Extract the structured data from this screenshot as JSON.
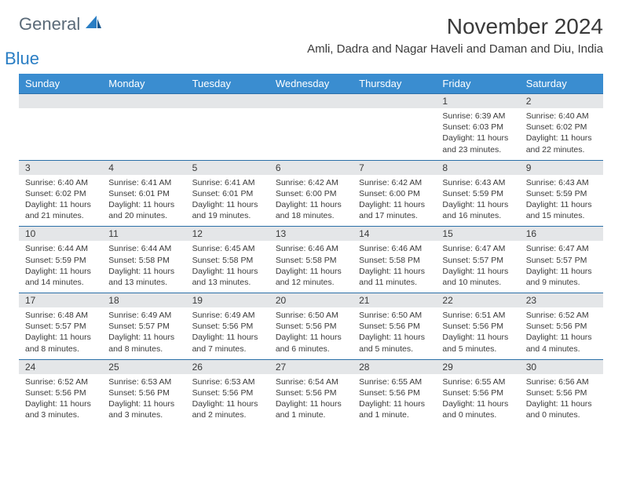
{
  "logo": {
    "general": "General",
    "blue": "Blue"
  },
  "title": "November 2024",
  "location": "Amli, Dadra and Nagar Haveli and Daman and Diu, India",
  "colors": {
    "header_bg": "#3a8dd0",
    "daynum_bg": "#e4e6e8",
    "row_border": "#2a6fa8",
    "text": "#3a3a3a",
    "logo_gray": "#5a6a78",
    "logo_blue": "#2a7ec4"
  },
  "weekdays": [
    "Sunday",
    "Monday",
    "Tuesday",
    "Wednesday",
    "Thursday",
    "Friday",
    "Saturday"
  ],
  "weeks": [
    [
      null,
      null,
      null,
      null,
      null,
      {
        "n": "1",
        "sr": "Sunrise: 6:39 AM",
        "ss": "Sunset: 6:03 PM",
        "dl": "Daylight: 11 hours and 23 minutes."
      },
      {
        "n": "2",
        "sr": "Sunrise: 6:40 AM",
        "ss": "Sunset: 6:02 PM",
        "dl": "Daylight: 11 hours and 22 minutes."
      }
    ],
    [
      {
        "n": "3",
        "sr": "Sunrise: 6:40 AM",
        "ss": "Sunset: 6:02 PM",
        "dl": "Daylight: 11 hours and 21 minutes."
      },
      {
        "n": "4",
        "sr": "Sunrise: 6:41 AM",
        "ss": "Sunset: 6:01 PM",
        "dl": "Daylight: 11 hours and 20 minutes."
      },
      {
        "n": "5",
        "sr": "Sunrise: 6:41 AM",
        "ss": "Sunset: 6:01 PM",
        "dl": "Daylight: 11 hours and 19 minutes."
      },
      {
        "n": "6",
        "sr": "Sunrise: 6:42 AM",
        "ss": "Sunset: 6:00 PM",
        "dl": "Daylight: 11 hours and 18 minutes."
      },
      {
        "n": "7",
        "sr": "Sunrise: 6:42 AM",
        "ss": "Sunset: 6:00 PM",
        "dl": "Daylight: 11 hours and 17 minutes."
      },
      {
        "n": "8",
        "sr": "Sunrise: 6:43 AM",
        "ss": "Sunset: 5:59 PM",
        "dl": "Daylight: 11 hours and 16 minutes."
      },
      {
        "n": "9",
        "sr": "Sunrise: 6:43 AM",
        "ss": "Sunset: 5:59 PM",
        "dl": "Daylight: 11 hours and 15 minutes."
      }
    ],
    [
      {
        "n": "10",
        "sr": "Sunrise: 6:44 AM",
        "ss": "Sunset: 5:59 PM",
        "dl": "Daylight: 11 hours and 14 minutes."
      },
      {
        "n": "11",
        "sr": "Sunrise: 6:44 AM",
        "ss": "Sunset: 5:58 PM",
        "dl": "Daylight: 11 hours and 13 minutes."
      },
      {
        "n": "12",
        "sr": "Sunrise: 6:45 AM",
        "ss": "Sunset: 5:58 PM",
        "dl": "Daylight: 11 hours and 13 minutes."
      },
      {
        "n": "13",
        "sr": "Sunrise: 6:46 AM",
        "ss": "Sunset: 5:58 PM",
        "dl": "Daylight: 11 hours and 12 minutes."
      },
      {
        "n": "14",
        "sr": "Sunrise: 6:46 AM",
        "ss": "Sunset: 5:58 PM",
        "dl": "Daylight: 11 hours and 11 minutes."
      },
      {
        "n": "15",
        "sr": "Sunrise: 6:47 AM",
        "ss": "Sunset: 5:57 PM",
        "dl": "Daylight: 11 hours and 10 minutes."
      },
      {
        "n": "16",
        "sr": "Sunrise: 6:47 AM",
        "ss": "Sunset: 5:57 PM",
        "dl": "Daylight: 11 hours and 9 minutes."
      }
    ],
    [
      {
        "n": "17",
        "sr": "Sunrise: 6:48 AM",
        "ss": "Sunset: 5:57 PM",
        "dl": "Daylight: 11 hours and 8 minutes."
      },
      {
        "n": "18",
        "sr": "Sunrise: 6:49 AM",
        "ss": "Sunset: 5:57 PM",
        "dl": "Daylight: 11 hours and 8 minutes."
      },
      {
        "n": "19",
        "sr": "Sunrise: 6:49 AM",
        "ss": "Sunset: 5:56 PM",
        "dl": "Daylight: 11 hours and 7 minutes."
      },
      {
        "n": "20",
        "sr": "Sunrise: 6:50 AM",
        "ss": "Sunset: 5:56 PM",
        "dl": "Daylight: 11 hours and 6 minutes."
      },
      {
        "n": "21",
        "sr": "Sunrise: 6:50 AM",
        "ss": "Sunset: 5:56 PM",
        "dl": "Daylight: 11 hours and 5 minutes."
      },
      {
        "n": "22",
        "sr": "Sunrise: 6:51 AM",
        "ss": "Sunset: 5:56 PM",
        "dl": "Daylight: 11 hours and 5 minutes."
      },
      {
        "n": "23",
        "sr": "Sunrise: 6:52 AM",
        "ss": "Sunset: 5:56 PM",
        "dl": "Daylight: 11 hours and 4 minutes."
      }
    ],
    [
      {
        "n": "24",
        "sr": "Sunrise: 6:52 AM",
        "ss": "Sunset: 5:56 PM",
        "dl": "Daylight: 11 hours and 3 minutes."
      },
      {
        "n": "25",
        "sr": "Sunrise: 6:53 AM",
        "ss": "Sunset: 5:56 PM",
        "dl": "Daylight: 11 hours and 3 minutes."
      },
      {
        "n": "26",
        "sr": "Sunrise: 6:53 AM",
        "ss": "Sunset: 5:56 PM",
        "dl": "Daylight: 11 hours and 2 minutes."
      },
      {
        "n": "27",
        "sr": "Sunrise: 6:54 AM",
        "ss": "Sunset: 5:56 PM",
        "dl": "Daylight: 11 hours and 1 minute."
      },
      {
        "n": "28",
        "sr": "Sunrise: 6:55 AM",
        "ss": "Sunset: 5:56 PM",
        "dl": "Daylight: 11 hours and 1 minute."
      },
      {
        "n": "29",
        "sr": "Sunrise: 6:55 AM",
        "ss": "Sunset: 5:56 PM",
        "dl": "Daylight: 11 hours and 0 minutes."
      },
      {
        "n": "30",
        "sr": "Sunrise: 6:56 AM",
        "ss": "Sunset: 5:56 PM",
        "dl": "Daylight: 11 hours and 0 minutes."
      }
    ]
  ]
}
